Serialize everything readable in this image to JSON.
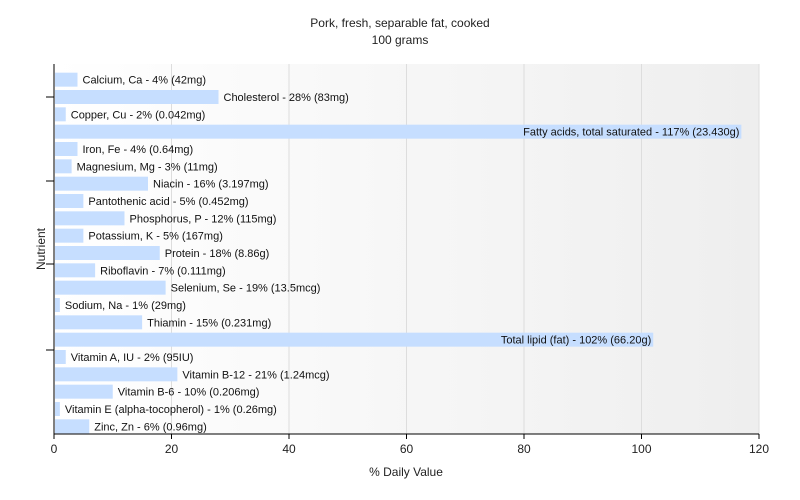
{
  "chart_data": {
    "type": "bar",
    "orientation": "horizontal",
    "title": "Pork, fresh, separable fat, cooked",
    "subtitle": "100 grams",
    "xlabel": "% Daily Value",
    "ylabel": "Nutrient",
    "xlim": [
      0,
      120
    ],
    "xticks": [
      0,
      20,
      40,
      60,
      80,
      100,
      120
    ],
    "grid": true,
    "bar_color": "#c6deff",
    "background_gradient": [
      "#ffffff",
      "#eeeeee"
    ],
    "categories": [
      "Calcium, Ca",
      "Cholesterol",
      "Copper, Cu",
      "Fatty acids, total saturated",
      "Iron, Fe",
      "Magnesium, Mg",
      "Niacin",
      "Pantothenic acid",
      "Phosphorus, P",
      "Potassium, K",
      "Protein",
      "Riboflavin",
      "Selenium, Se",
      "Sodium, Na",
      "Thiamin",
      "Total lipid (fat)",
      "Vitamin A, IU",
      "Vitamin B-12",
      "Vitamin B-6",
      "Vitamin E (alpha-tocopherol)",
      "Zinc, Zn"
    ],
    "values": [
      4,
      28,
      2,
      117,
      4,
      3,
      16,
      5,
      12,
      5,
      18,
      7,
      19,
      1,
      15,
      102,
      2,
      21,
      10,
      1,
      6
    ],
    "labels": [
      "Calcium, Ca - 4% (42mg)",
      "Cholesterol - 28% (83mg)",
      "Copper, Cu - 2% (0.042mg)",
      "Fatty acids, total saturated - 117% (23.430g)",
      "Iron, Fe - 4% (0.64mg)",
      "Magnesium, Mg - 3% (11mg)",
      "Niacin - 16% (3.197mg)",
      "Pantothenic acid - 5% (0.452mg)",
      "Phosphorus, P - 12% (115mg)",
      "Potassium, K - 5% (167mg)",
      "Protein - 18% (8.86g)",
      "Riboflavin - 7% (0.111mg)",
      "Selenium, Se - 19% (13.5mcg)",
      "Sodium, Na - 1% (29mg)",
      "Thiamin - 15% (0.231mg)",
      "Total lipid (fat) - 102% (66.20g)",
      "Vitamin A, IU - 2% (95IU)",
      "Vitamin B-12 - 21% (1.24mcg)",
      "Vitamin B-6 - 10% (0.206mg)",
      "Vitamin E (alpha-tocopherol) - 1% (0.26mg)",
      "Zinc, Zn - 6% (0.96mg)"
    ]
  }
}
